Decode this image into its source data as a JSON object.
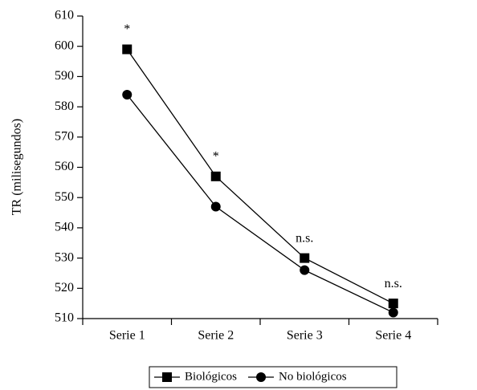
{
  "chart_data": {
    "type": "line",
    "y_label": "TR (milisegundos)",
    "categories": [
      "Serie 1",
      "Serie 2",
      "Serie 3",
      "Serie 4"
    ],
    "series": [
      {
        "name": "Biológicos",
        "color": "#000000",
        "marker": "square",
        "values": [
          599,
          557,
          530,
          515
        ]
      },
      {
        "name": "No biológicos",
        "color": "#000000",
        "marker": "circle",
        "values": [
          584,
          547,
          526,
          512
        ]
      }
    ],
    "annotations": [
      "*",
      "*",
      "n.s.",
      "n.s."
    ],
    "ylim": [
      510,
      610
    ],
    "yticks": [
      510,
      520,
      530,
      540,
      550,
      560,
      570,
      580,
      590,
      600,
      610
    ],
    "grid": false,
    "legend": "bottom"
  }
}
